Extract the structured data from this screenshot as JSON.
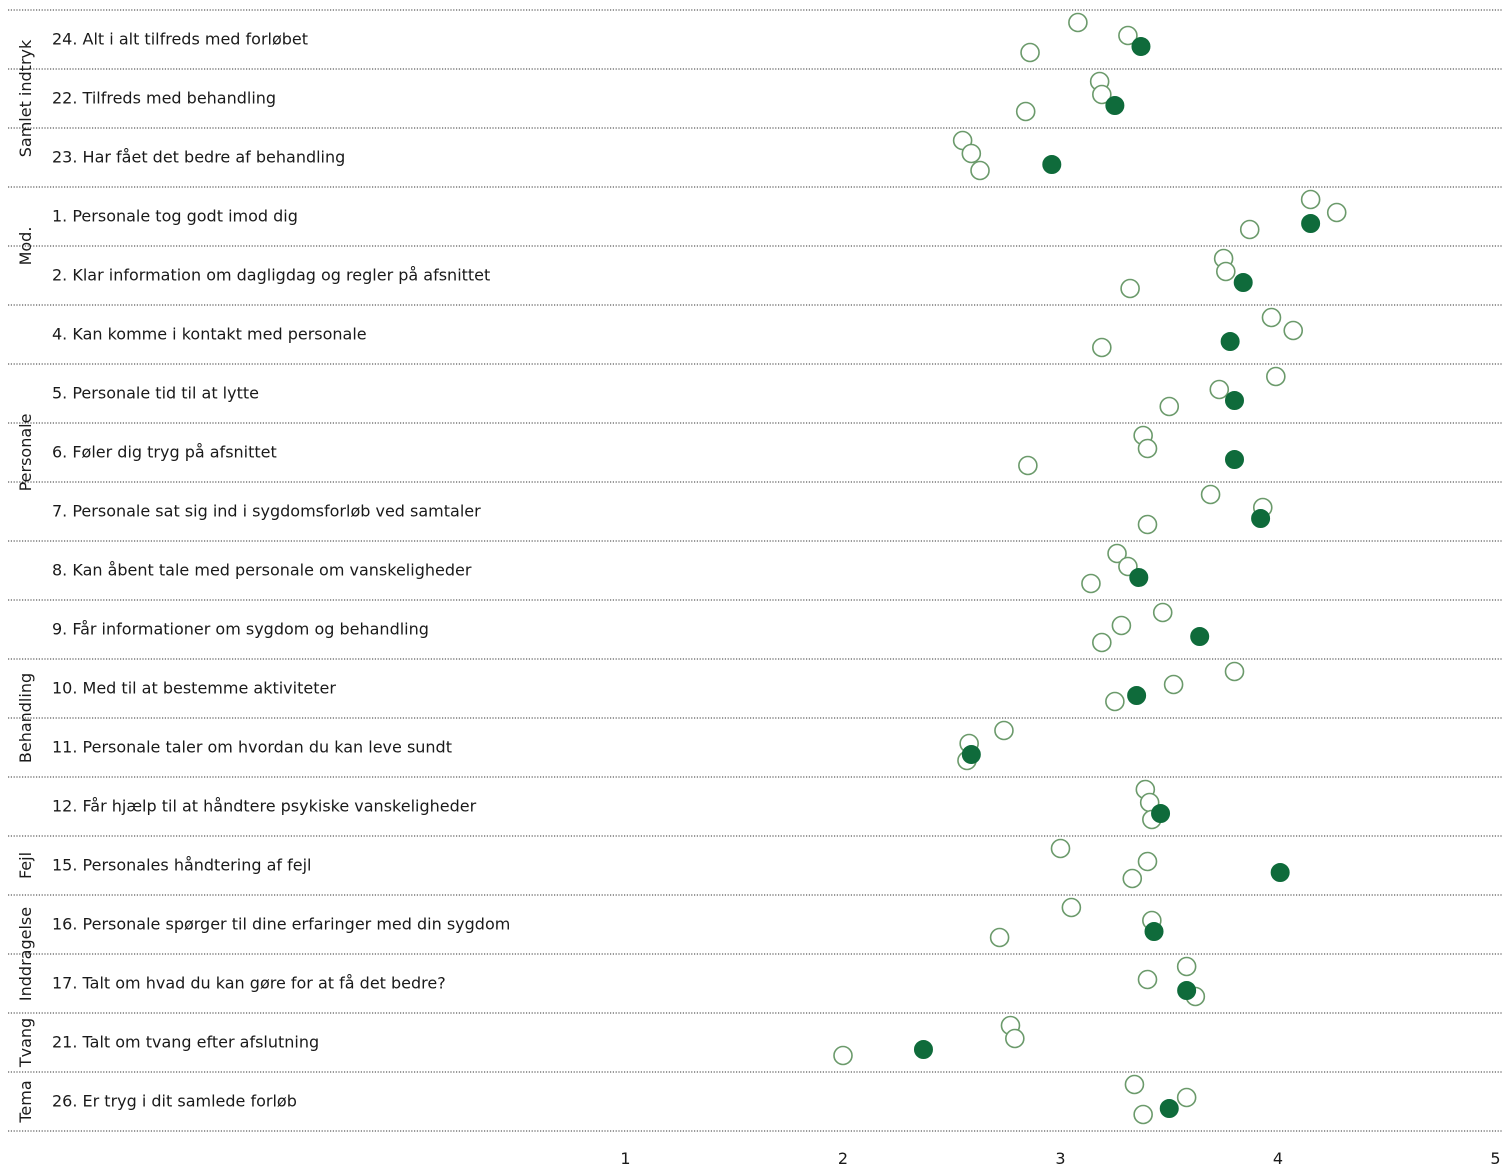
{
  "chart_data": {
    "type": "scatter",
    "title": "",
    "xlabel": "",
    "ylabel": "",
    "xlim": [
      0,
      5
    ],
    "x_ticks": [
      "1",
      "2",
      "3",
      "4",
      "5"
    ],
    "grid": false,
    "legend": "none",
    "colors": {
      "filled": "#0f6b3b",
      "open_stroke": "#6b9a6b",
      "open_fill": "#ffffff"
    },
    "groups": [
      {
        "name": "Samlet indtryk",
        "items": [
          {
            "label": "24. Alt i alt tilfreds med forløbet",
            "value": 3.37,
            "refs": [
              3.08,
              3.31,
              2.86
            ]
          },
          {
            "label": "22. Tilfreds med behandling",
            "value": 3.25,
            "refs": [
              3.18,
              3.19,
              2.84
            ]
          },
          {
            "label": "23. Har fået det bedre af behandling",
            "value": 2.96,
            "refs": [
              2.55,
              2.59,
              2.63
            ]
          }
        ]
      },
      {
        "name": "Mod.",
        "items": [
          {
            "label": "1. Personale tog godt imod dig",
            "value": 4.15,
            "refs": [
              4.15,
              4.27,
              3.87
            ]
          },
          {
            "label": "2. Klar information om dagligdag og regler på afsnittet",
            "value": 3.84,
            "refs": [
              3.75,
              3.76,
              3.32
            ]
          }
        ]
      },
      {
        "name": "Personale",
        "items": [
          {
            "label": "4. Kan komme i kontakt med personale",
            "value": 3.78,
            "refs": [
              3.97,
              4.07,
              3.19
            ]
          },
          {
            "label": "5. Personale tid til at lytte",
            "value": 3.8,
            "refs": [
              3.99,
              3.73,
              3.5
            ]
          },
          {
            "label": "6. Føler dig tryg på afsnittet",
            "value": 3.8,
            "refs": [
              3.38,
              3.4,
              2.85
            ]
          },
          {
            "label": "7. Personale sat sig ind i sygdomsforløb ved samtaler",
            "value": 3.92,
            "refs": [
              3.69,
              3.93,
              3.4
            ]
          },
          {
            "label": "8. Kan åbent tale med personale om vanskeligheder",
            "value": 3.36,
            "refs": [
              3.26,
              3.31,
              3.14
            ]
          }
        ]
      },
      {
        "name": "Behandling",
        "items": [
          {
            "label": "9. Får informationer om sygdom og behandling",
            "value": 3.64,
            "refs": [
              3.47,
              3.28,
              3.19
            ]
          },
          {
            "label": "10. Med til at bestemme aktiviteter",
            "value": 3.35,
            "refs": [
              3.8,
              3.52,
              3.25
            ]
          },
          {
            "label": "11. Personale taler om hvordan du kan leve sundt",
            "value": 2.59,
            "refs": [
              2.74,
              2.58,
              2.57
            ]
          },
          {
            "label": "12. Får hjælp til at håndtere psykiske vanskeligheder",
            "value": 3.46,
            "refs": [
              3.39,
              3.41,
              3.42
            ]
          }
        ]
      },
      {
        "name": "Fejl",
        "items": [
          {
            "label": "15. Personales håndtering af fejl",
            "value": 4.01,
            "refs": [
              3.0,
              3.4,
              3.33
            ]
          }
        ]
      },
      {
        "name": "Inddragelse",
        "items": [
          {
            "label": "16. Personale spørger til dine erfaringer med din sygdom",
            "value": 3.43,
            "refs": [
              3.05,
              3.42,
              2.72
            ]
          },
          {
            "label": "17. Talt om hvad du kan gøre for at få det bedre?",
            "value": 3.58,
            "refs": [
              3.58,
              3.4,
              3.62
            ]
          }
        ]
      },
      {
        "name": "Tvang",
        "items": [
          {
            "label": "21. Talt om tvang efter afslutning",
            "value": 2.37,
            "refs": [
              2.77,
              2.79,
              2.0
            ]
          }
        ]
      },
      {
        "name": "Tema",
        "items": [
          {
            "label": "26. Er tryg i dit samlede forløb",
            "value": 3.5,
            "refs": [
              3.34,
              3.58,
              3.38
            ]
          }
        ]
      }
    ]
  }
}
